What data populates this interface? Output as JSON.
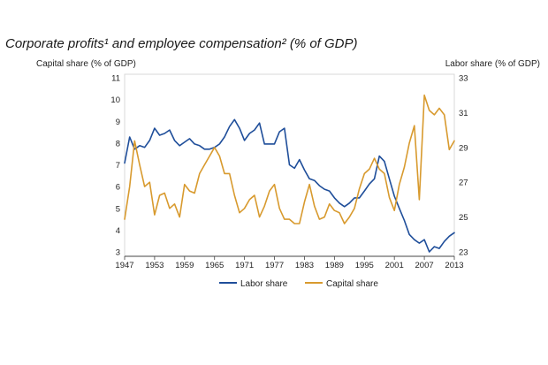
{
  "chart_data": {
    "type": "line",
    "title": "Corporate profits¹ and employee compensation² (% of GDP)",
    "left_axis": {
      "label": "Capital share (% of GDP)",
      "range": [
        3,
        11
      ],
      "ticks": [
        "3",
        "4",
        "5",
        "6",
        "7",
        "8",
        "9",
        "10",
        "11"
      ]
    },
    "right_axis": {
      "label": "Labor share (% of GDP)",
      "range": [
        23,
        33
      ],
      "ticks": [
        "23",
        "25",
        "27",
        "29",
        "31",
        "33"
      ]
    },
    "x_axis": {
      "range": [
        1947,
        2013
      ],
      "ticks": [
        "1947",
        "1953",
        "1959",
        "1965",
        "1971",
        "1977",
        "1983",
        "1989",
        "1995",
        "2001",
        "2007",
        "2013"
      ]
    },
    "grid": false,
    "legend_position": "bottom-center",
    "series": [
      {
        "name": "Labor share",
        "axis": "right",
        "color": "#1f4e9a",
        "x": [
          1947,
          1948,
          1949,
          1950,
          1951,
          1952,
          1953,
          1954,
          1955,
          1956,
          1957,
          1958,
          1959,
          1960,
          1961,
          1962,
          1963,
          1964,
          1965,
          1966,
          1967,
          1968,
          1969,
          1970,
          1971,
          1972,
          1973,
          1974,
          1975,
          1976,
          1977,
          1978,
          1979,
          1980,
          1981,
          1982,
          1983,
          1984,
          1985,
          1986,
          1987,
          1988,
          1989,
          1990,
          1991,
          1992,
          1993,
          1994,
          1995,
          1996,
          1997,
          1998,
          1999,
          2000,
          2001,
          2002,
          2003,
          2004,
          2005,
          2006,
          2007,
          2008,
          2009,
          2010,
          2011,
          2012,
          2013
        ],
        "values": [
          28.1,
          29.6,
          28.9,
          29.1,
          29.0,
          29.4,
          30.1,
          29.7,
          29.8,
          30.0,
          29.4,
          29.1,
          29.3,
          29.5,
          29.2,
          29.1,
          28.9,
          28.9,
          29.0,
          29.2,
          29.6,
          30.2,
          30.6,
          30.1,
          29.4,
          29.8,
          30.0,
          30.4,
          29.2,
          29.2,
          29.2,
          29.9,
          30.1,
          28.0,
          27.8,
          28.3,
          27.7,
          27.2,
          27.1,
          26.8,
          26.6,
          26.5,
          26.1,
          25.8,
          25.6,
          25.8,
          26.1,
          26.1,
          26.5,
          26.9,
          27.2,
          28.5,
          28.2,
          27.2,
          26.2,
          25.5,
          24.8,
          24.0,
          23.7,
          23.5,
          23.7,
          23.0,
          23.3,
          23.2,
          23.6,
          23.9,
          24.1
        ]
      },
      {
        "name": "Capital share",
        "axis": "left",
        "color": "#d89a2e",
        "x": [
          1947,
          1948,
          1949,
          1950,
          1951,
          1952,
          1953,
          1954,
          1955,
          1956,
          1957,
          1958,
          1959,
          1960,
          1961,
          1962,
          1963,
          1964,
          1965,
          1966,
          1967,
          1968,
          1969,
          1970,
          1971,
          1972,
          1973,
          1974,
          1975,
          1976,
          1977,
          1978,
          1979,
          1980,
          1981,
          1982,
          1983,
          1984,
          1985,
          1986,
          1987,
          1988,
          1989,
          1990,
          1991,
          1992,
          1993,
          1994,
          1995,
          1996,
          1997,
          1998,
          1999,
          2000,
          2001,
          2002,
          2003,
          2004,
          2005,
          2006,
          2007,
          2008,
          2009,
          2010,
          2011,
          2012,
          2013
        ],
        "values": [
          4.5,
          6.0,
          8.1,
          7.0,
          6.0,
          6.2,
          4.7,
          5.6,
          5.7,
          5.0,
          5.2,
          4.6,
          6.1,
          5.8,
          5.7,
          6.6,
          7.0,
          7.4,
          7.8,
          7.4,
          6.6,
          6.6,
          5.6,
          4.8,
          5.0,
          5.4,
          5.6,
          4.6,
          5.1,
          5.8,
          6.1,
          5.0,
          4.5,
          4.5,
          4.3,
          4.3,
          5.3,
          6.1,
          5.1,
          4.5,
          4.6,
          5.2,
          4.9,
          4.8,
          4.3,
          4.6,
          5.0,
          5.9,
          6.6,
          6.8,
          7.3,
          6.8,
          6.6,
          5.5,
          4.9,
          6.1,
          6.9,
          8.0,
          8.8,
          5.4,
          10.2,
          9.5,
          9.3,
          9.6,
          9.3,
          7.7,
          8.1
        ]
      }
    ]
  },
  "legend": [
    {
      "label": "Labor share",
      "color": "#1f4e9a"
    },
    {
      "label": "Capital share",
      "color": "#d89a2e"
    }
  ]
}
